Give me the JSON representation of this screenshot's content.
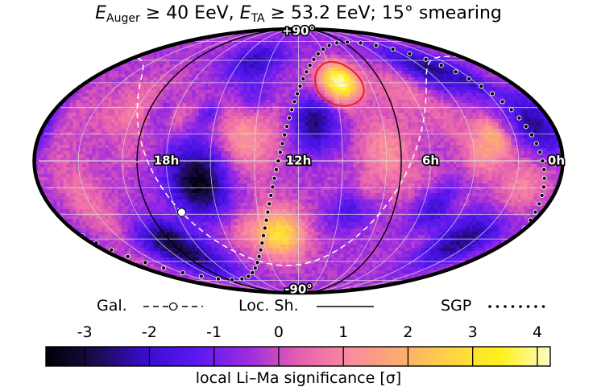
{
  "title": {
    "e1_sym": "E",
    "e1_sub": "Auger",
    "e1_rest": " ≥ 40 EeV, ",
    "e2_sym": "E",
    "e2_sub": "TA",
    "e2_rest": " ≥ 53.2 EeV; 15° smearing"
  },
  "legend": {
    "gal_label": "Gal.",
    "locsh_label": "Loc. Sh.",
    "sgp_label": "SGP"
  },
  "colors": {
    "galactic_plane": "#ffffff",
    "local_sheet": "#000000",
    "supergalactic_plane": "#000000",
    "hotspot_outline": "#e8211b",
    "graticule": "#dddddd"
  },
  "chart_data": {
    "type": "heatmap",
    "projection": "Mollweide (equatorial coordinates, RA increasing to the left)",
    "title": "E_Auger ≥ 40 EeV, E_TA ≥ 53.2 EeV; 15° smearing",
    "colorbar": {
      "label": "local Li–Ma significance [σ]",
      "range": [
        -3.6,
        4.2
      ],
      "ticks": [
        -3,
        -2,
        -1,
        0,
        1,
        2,
        3,
        4
      ],
      "tick_labels": [
        "-3",
        "-2",
        "-1",
        "0",
        "1",
        "2",
        "3",
        "4"
      ],
      "colormap": [
        "#000004",
        "#1a0b4f",
        "#3a0dcf",
        "#5b19f0",
        "#9c2be0",
        "#e45fb0",
        "#f98aa0",
        "#fcac6e",
        "#ffd247",
        "#fff11a",
        "#fcfcc4"
      ]
    },
    "ra_labels": [
      "18h",
      "12h",
      "6h",
      "0h"
    ],
    "ra_label_values_h": [
      18,
      12,
      6,
      0
    ],
    "dec_labels": [
      "+90°",
      "-90°"
    ],
    "dec_label_values_deg": [
      90,
      -90
    ],
    "hotspots": [
      {
        "ra_deg": 146,
        "dec_deg": 45,
        "sigma": 4.0,
        "radius_deg": 14,
        "outlined": true
      },
      {
        "ra_deg": 195,
        "dec_deg": -42,
        "sigma": 3.3,
        "radius_deg": 18,
        "outlined": false
      },
      {
        "ra_deg": 215,
        "dec_deg": 15,
        "sigma": 1.8,
        "radius_deg": 25,
        "outlined": false
      },
      {
        "ra_deg": 120,
        "dec_deg": 5,
        "sigma": 1.5,
        "radius_deg": 22,
        "outlined": false
      },
      {
        "ra_deg": 95,
        "dec_deg": 40,
        "sigma": 1.2,
        "radius_deg": 20,
        "outlined": false
      },
      {
        "ra_deg": 300,
        "dec_deg": 25,
        "sigma": 1.2,
        "radius_deg": 25,
        "outlined": false
      },
      {
        "ra_deg": 335,
        "dec_deg": -20,
        "sigma": 1.0,
        "radius_deg": 22,
        "outlined": false
      },
      {
        "ra_deg": 25,
        "dec_deg": -15,
        "sigma": 1.3,
        "radius_deg": 22,
        "outlined": false
      },
      {
        "ra_deg": 355,
        "dec_deg": 25,
        "sigma": 1.0,
        "radius_deg": 20,
        "outlined": false
      },
      {
        "ra_deg": 55,
        "dec_deg": 10,
        "sigma": 0.7,
        "radius_deg": 20,
        "outlined": false
      }
    ],
    "coldspots": [
      {
        "ra_deg": 250,
        "dec_deg": -10,
        "sigma": -2.8,
        "radius_deg": 25
      },
      {
        "ra_deg": 170,
        "dec_deg": 20,
        "sigma": -2.0,
        "radius_deg": 18
      },
      {
        "ra_deg": 10,
        "dec_deg": 20,
        "sigma": -2.5,
        "radius_deg": 20
      },
      {
        "ra_deg": 40,
        "dec_deg": -45,
        "sigma": -2.3,
        "radius_deg": 22
      },
      {
        "ra_deg": 285,
        "dec_deg": -55,
        "sigma": -2.5,
        "radius_deg": 20
      },
      {
        "ra_deg": 60,
        "dec_deg": 55,
        "sigma": -2.0,
        "radius_deg": 20
      },
      {
        "ra_deg": 225,
        "dec_deg": 60,
        "sigma": -1.5,
        "radius_deg": 18
      },
      {
        "ra_deg": 145,
        "dec_deg": -25,
        "sigma": -2.0,
        "radius_deg": 18
      },
      {
        "ra_deg": 80,
        "dec_deg": -25,
        "sigma": -1.8,
        "radius_deg": 18
      }
    ],
    "galactic_center": {
      "ra_deg": 266.4,
      "dec_deg": -28.9
    },
    "local_sheet_pole": {
      "ra_deg": 200,
      "dec_deg": 0
    },
    "supergalactic_pole": {
      "ra_deg": 283.8,
      "dec_deg": 15.7
    },
    "galactic_pole": {
      "ra_deg": 192.86,
      "dec_deg": 27.13
    }
  }
}
